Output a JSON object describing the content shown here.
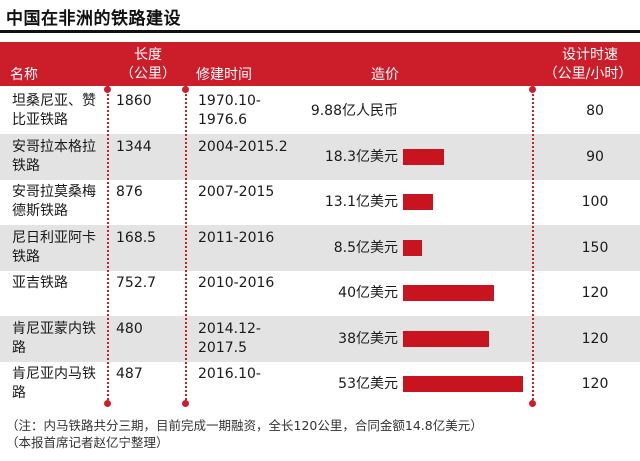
{
  "title": "中国在非洲的铁路建设",
  "headers": {
    "name": "名称",
    "length_line1": "长度",
    "length_line2": "（公里）",
    "period": "修建时间",
    "cost": "造价",
    "speed_line1": "设计时速",
    "speed_line2": "（公里/小时）"
  },
  "rows": [
    {
      "name": "坦桑尼亚、赞比亚铁路",
      "length": "1860",
      "period": "1970.10-1976.6",
      "cost_label": "9.88亿人民币",
      "speed": "80"
    },
    {
      "name": "安哥拉本格拉铁路",
      "length": "1344",
      "period": "2004-2015.2",
      "cost_label": "18.3亿美元",
      "speed": "90"
    },
    {
      "name": "安哥拉莫桑梅德斯铁路",
      "length": "876",
      "period": "2007-2015",
      "cost_label": "13.1亿美元",
      "speed": "100"
    },
    {
      "name": "尼日利亚阿卡铁路",
      "length": "168.5",
      "period": "2011-2016",
      "cost_label": "8.5亿美元",
      "speed": "150"
    },
    {
      "name": "亚吉铁路",
      "length": "752.7",
      "period": "2010-2016",
      "cost_label": "40亿美元",
      "speed": "120"
    },
    {
      "name": "肯尼亚蒙内铁路",
      "length": "480",
      "period": "2014.12-2017.5",
      "cost_label": "38亿美元",
      "speed": "120"
    },
    {
      "name": "肯尼亚内马铁路",
      "length": "487",
      "period": "2016.10-",
      "cost_label": "53亿美元",
      "speed": "120"
    }
  ],
  "notes": {
    "line1": "（注：内马铁路共分三期，目前完成一期融资，全长120公里，合同金额14.8亿美元）",
    "line2": "（本报首席记者赵亿宁整理）"
  },
  "colors": {
    "accent": "#cc1e2a",
    "bar": "#c8141e",
    "shade": "#e3e3e3"
  },
  "chart_data": {
    "type": "table",
    "title": "中国在非洲的铁路建设",
    "columns": [
      "名称",
      "长度（公里）",
      "修建时间",
      "造价",
      "设计时速（公里/小时）"
    ],
    "bar_series": {
      "name": "造价",
      "unit": "亿美元",
      "categories": [
        "坦桑尼亚、赞比亚铁路",
        "安哥拉本格拉铁路",
        "安哥拉莫桑梅德斯铁路",
        "尼日利亚阿卡铁路",
        "亚吉铁路",
        "肯尼亚蒙内铁路",
        "肯尼亚内马铁路"
      ],
      "values": [
        null,
        18.3,
        13.1,
        8.5,
        40,
        38,
        53
      ]
    }
  }
}
